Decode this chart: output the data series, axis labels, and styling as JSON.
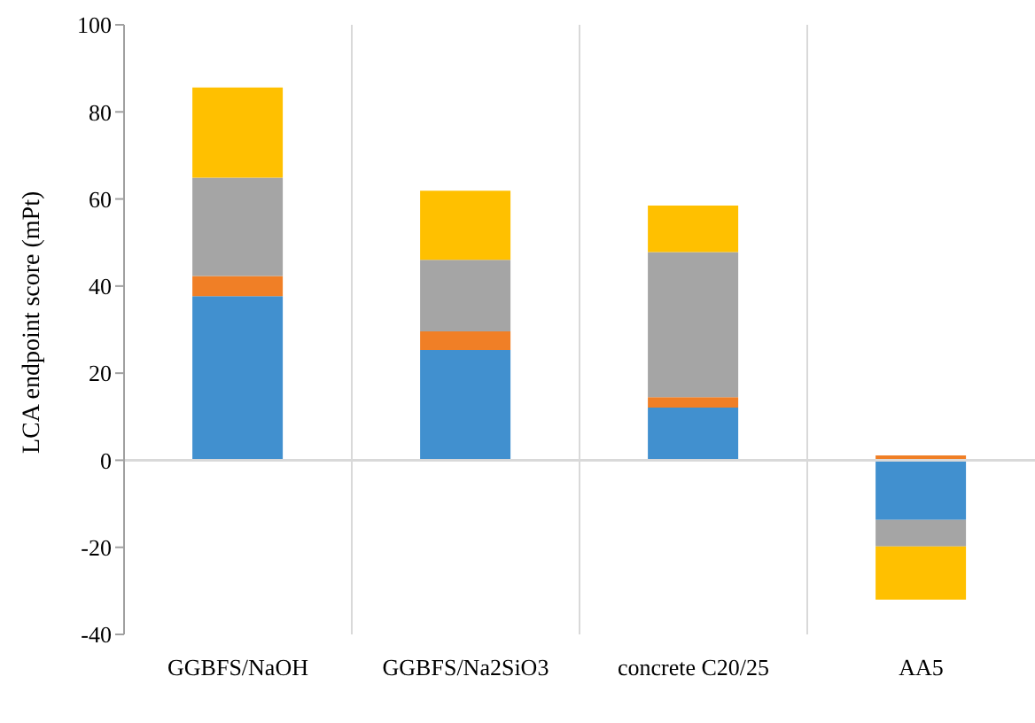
{
  "chart_data": {
    "type": "bar",
    "stacked": true,
    "ylabel": "LCA endpoint score (mPt)",
    "categories": [
      "GGBFS/NaOH",
      "GGBFS/Na2SiO3",
      "concrete C20/25",
      "AA5"
    ],
    "series": [
      {
        "color": "#4190cf",
        "values": [
          37.7,
          25.3,
          12.1,
          -13.7
        ]
      },
      {
        "color": "#f07f26",
        "values": [
          4.6,
          4.3,
          2.4,
          1.1
        ]
      },
      {
        "color": "#a5a5a5",
        "values": [
          22.6,
          16.4,
          33.3,
          -6.1
        ]
      },
      {
        "color": "#ffc000",
        "values": [
          20.7,
          15.9,
          10.7,
          -12.2
        ]
      }
    ],
    "ylim": [
      -40,
      100
    ],
    "yticks": [
      -40,
      -20,
      0,
      20,
      40,
      60,
      80,
      100
    ],
    "grid": "x",
    "legend": false
  }
}
